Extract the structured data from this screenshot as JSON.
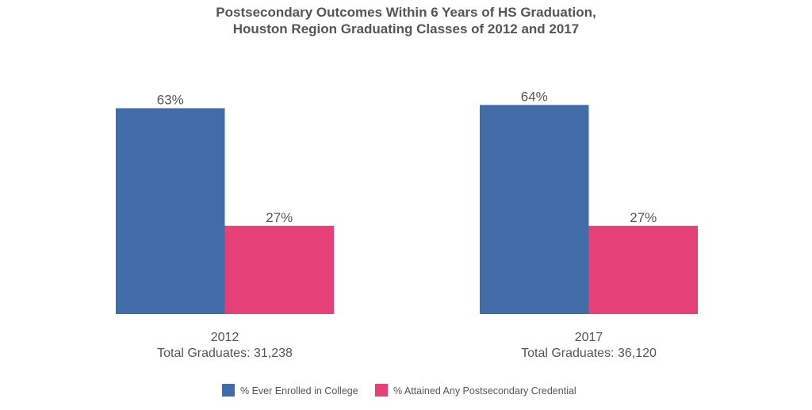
{
  "chart_data": {
    "type": "bar",
    "title": "Postsecondary Outcomes Within 6 Years of HS Graduation,",
    "subtitle": "Houston Region Graduating Classes of 2012 and 2017",
    "categories": [
      "2012",
      "2017"
    ],
    "category_sublabels": [
      "Total Graduates: 31,238",
      "Total Graduates: 36,120"
    ],
    "series": [
      {
        "name": "% Ever Enrolled in College",
        "values": [
          63,
          64
        ],
        "labels": [
          "63%",
          "64%"
        ],
        "color": "#416ca8"
      },
      {
        "name": "% Attained Any Postsecondary Credential",
        "values": [
          27,
          27
        ],
        "labels": [
          "27%",
          "27%"
        ],
        "color": "#e54178"
      }
    ],
    "ylim": [
      0,
      100
    ],
    "grid": false,
    "legend_position": "bottom"
  }
}
